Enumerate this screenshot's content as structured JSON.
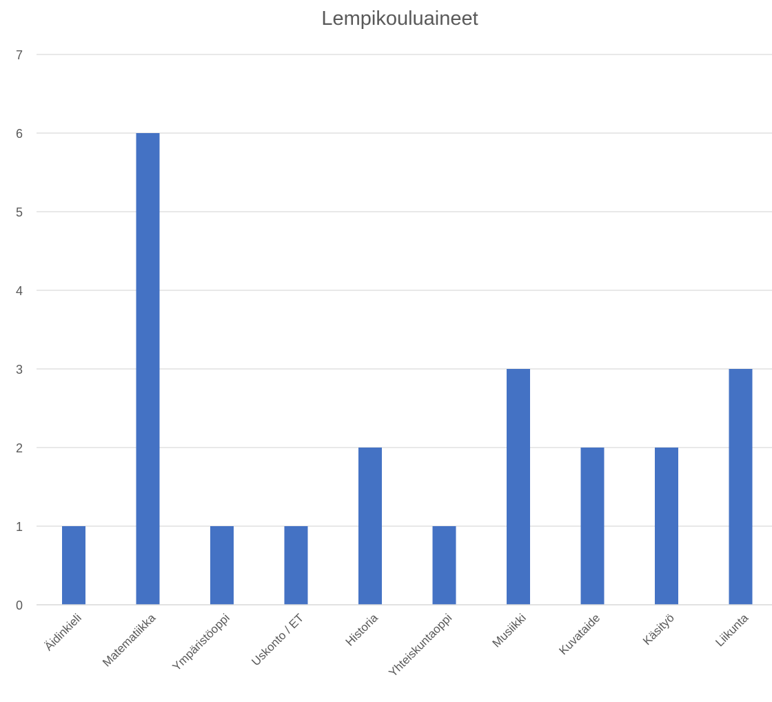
{
  "chart_data": {
    "type": "bar",
    "title": "Lempikouluaineet",
    "xlabel": "",
    "ylabel": "",
    "categories": [
      "Äidinkieli",
      "Matematiikka",
      "Ympäristöoppi",
      "Uskonto / ET",
      "Historia",
      "Yhteiskuntaoppi",
      "Musiikki",
      "Kuvataide",
      "Käsityö",
      "Liikunta"
    ],
    "values": [
      1,
      6,
      1,
      1,
      2,
      1,
      3,
      2,
      2,
      3
    ],
    "ylim": [
      0,
      7
    ],
    "yticks": [
      "0",
      "1",
      "2",
      "3",
      "4",
      "5",
      "6",
      "7"
    ],
    "grid": true,
    "legend": "none",
    "colors": {
      "bar": "#4472C4",
      "grid": "#D9D9D9",
      "axis": "#D9D9D9",
      "text": "#595959"
    }
  }
}
